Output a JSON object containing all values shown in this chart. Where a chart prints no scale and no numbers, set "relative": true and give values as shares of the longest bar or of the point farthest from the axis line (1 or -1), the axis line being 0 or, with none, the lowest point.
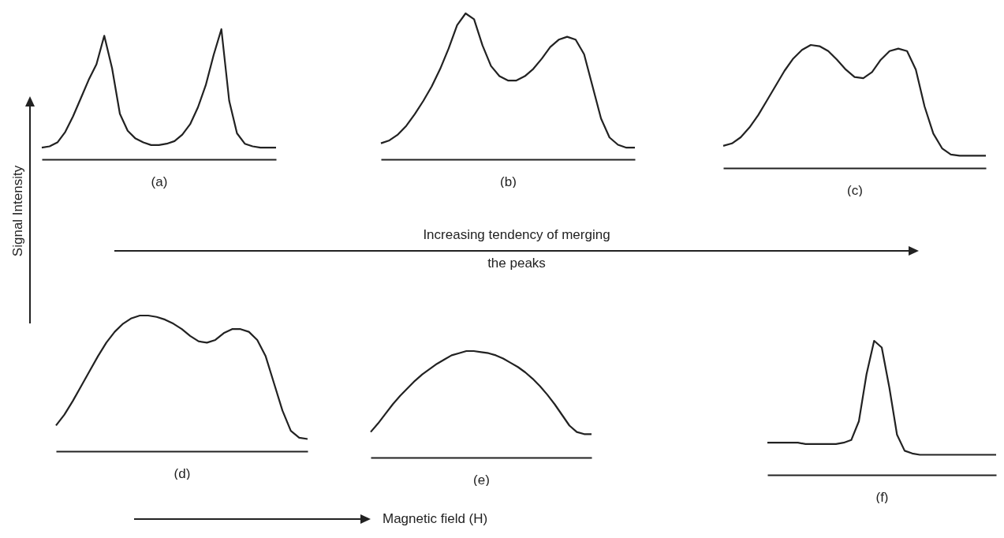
{
  "chart_data": [
    {
      "type": "line",
      "relative": true,
      "xlabel": "(a)",
      "ylabel": "Signal Intensity",
      "color": "#222222",
      "categories": [
        null,
        null,
        null,
        null,
        null,
        null,
        null,
        null,
        null,
        null,
        null,
        null,
        null,
        null,
        null,
        null,
        null,
        null,
        null,
        null,
        null,
        null,
        null,
        null,
        null,
        null,
        null,
        null,
        null,
        null,
        null
      ],
      "values": [
        0.09,
        0.1,
        0.13,
        0.21,
        0.33,
        0.47,
        0.61,
        0.73,
        0.95,
        0.7,
        0.35,
        0.22,
        0.16,
        0.13,
        0.11,
        0.11,
        0.12,
        0.14,
        0.19,
        0.27,
        0.4,
        0.57,
        0.8,
        1.0,
        0.45,
        0.2,
        0.12,
        0.1,
        0.09,
        0.09,
        0.09
      ],
      "annotations": [
        "Increasing tendency of merging the peaks"
      ]
    },
    {
      "type": "line",
      "relative": true,
      "xlabel": "(b)",
      "color": "#222222",
      "categories": [
        null,
        null,
        null,
        null,
        null,
        null,
        null,
        null,
        null,
        null,
        null,
        null,
        null,
        null,
        null,
        null,
        null,
        null,
        null,
        null,
        null,
        null,
        null,
        null,
        null,
        null,
        null,
        null,
        null,
        null,
        null
      ],
      "values": [
        0.11,
        0.13,
        0.17,
        0.23,
        0.31,
        0.4,
        0.5,
        0.62,
        0.76,
        0.92,
        1.0,
        0.96,
        0.78,
        0.64,
        0.57,
        0.54,
        0.54,
        0.57,
        0.62,
        0.69,
        0.77,
        0.82,
        0.84,
        0.82,
        0.72,
        0.5,
        0.28,
        0.15,
        0.1,
        0.08,
        0.08
      ]
    },
    {
      "type": "line",
      "relative": true,
      "xlabel": "(c)",
      "color": "#222222",
      "categories": [
        null,
        null,
        null,
        null,
        null,
        null,
        null,
        null,
        null,
        null,
        null,
        null,
        null,
        null,
        null,
        null,
        null,
        null,
        null,
        null,
        null,
        null,
        null,
        null,
        null,
        null,
        null,
        null,
        null,
        null,
        null
      ],
      "values": [
        0.18,
        0.2,
        0.25,
        0.33,
        0.43,
        0.55,
        0.67,
        0.79,
        0.89,
        0.96,
        1.0,
        0.99,
        0.95,
        0.88,
        0.8,
        0.74,
        0.73,
        0.78,
        0.88,
        0.95,
        0.97,
        0.95,
        0.8,
        0.5,
        0.28,
        0.16,
        0.11,
        0.1,
        0.1,
        0.1,
        0.1
      ]
    },
    {
      "type": "line",
      "relative": true,
      "xlabel": "(d)",
      "color": "#222222",
      "categories": [
        null,
        null,
        null,
        null,
        null,
        null,
        null,
        null,
        null,
        null,
        null,
        null,
        null,
        null,
        null,
        null,
        null,
        null,
        null,
        null,
        null,
        null,
        null,
        null,
        null,
        null,
        null,
        null,
        null,
        null,
        null
      ],
      "values": [
        0.19,
        0.27,
        0.37,
        0.48,
        0.59,
        0.7,
        0.8,
        0.88,
        0.94,
        0.98,
        1.0,
        1.0,
        0.99,
        0.97,
        0.94,
        0.9,
        0.85,
        0.81,
        0.8,
        0.82,
        0.87,
        0.9,
        0.9,
        0.88,
        0.82,
        0.7,
        0.5,
        0.3,
        0.15,
        0.1,
        0.09
      ],
      "annotations": [
        "Magnetic field (H)"
      ]
    },
    {
      "type": "line",
      "relative": true,
      "xlabel": "(e)",
      "color": "#222222",
      "categories": [
        null,
        null,
        null,
        null,
        null,
        null,
        null,
        null,
        null,
        null,
        null,
        null,
        null,
        null,
        null,
        null,
        null,
        null,
        null,
        null,
        null,
        null,
        null,
        null,
        null,
        null,
        null,
        null,
        null,
        null,
        null
      ],
      "values": [
        0.24,
        0.32,
        0.41,
        0.5,
        0.58,
        0.65,
        0.72,
        0.78,
        0.83,
        0.88,
        0.92,
        0.96,
        0.98,
        1.0,
        1.0,
        0.99,
        0.98,
        0.96,
        0.93,
        0.89,
        0.85,
        0.8,
        0.74,
        0.67,
        0.59,
        0.5,
        0.4,
        0.3,
        0.24,
        0.22,
        0.22
      ]
    },
    {
      "type": "line",
      "relative": true,
      "xlabel": "(f)",
      "color": "#222222",
      "categories": [
        null,
        null,
        null,
        null,
        null,
        null,
        null,
        null,
        null,
        null,
        null,
        null,
        null,
        null,
        null,
        null,
        null,
        null,
        null,
        null,
        null,
        null,
        null,
        null,
        null,
        null,
        null,
        null,
        null,
        null,
        null
      ],
      "values": [
        0.24,
        0.24,
        0.24,
        0.24,
        0.24,
        0.23,
        0.23,
        0.23,
        0.23,
        0.23,
        0.24,
        0.26,
        0.4,
        0.75,
        1.0,
        0.95,
        0.65,
        0.3,
        0.18,
        0.16,
        0.15,
        0.15,
        0.15,
        0.15,
        0.15,
        0.15,
        0.15,
        0.15,
        0.15,
        0.15,
        0.15
      ]
    }
  ]
}
